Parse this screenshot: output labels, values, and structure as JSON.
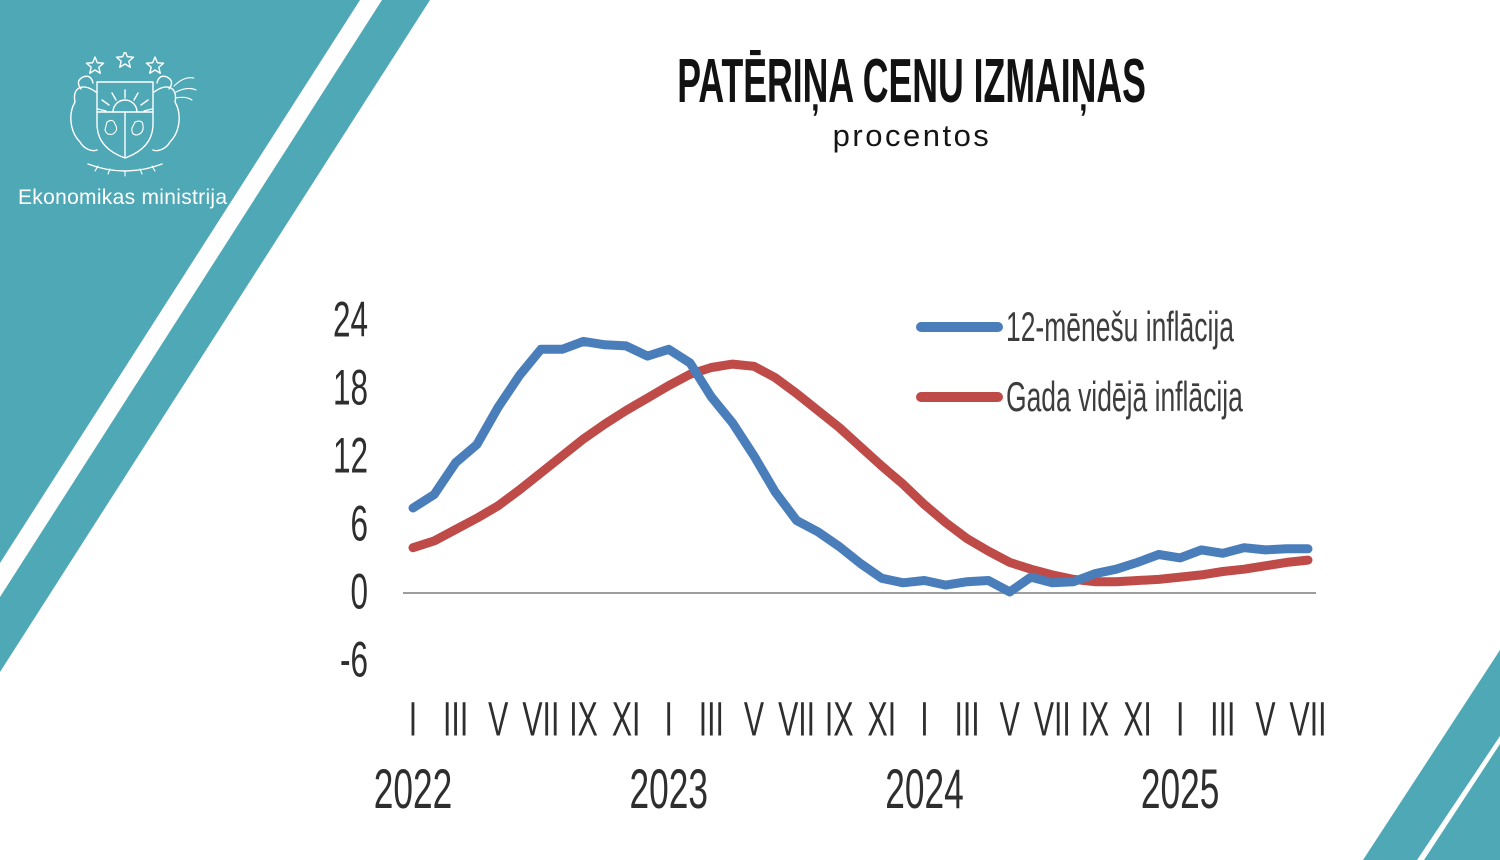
{
  "branding": {
    "ministry_name": "Ekonomikas ministrija",
    "emblem": "latvian-coat-of-arms",
    "teal": "#4FA8B5",
    "emblem_stroke": "#FFFFFF"
  },
  "header": {
    "title": "PATĒRIŅA CENU IZMAIŅAS",
    "subtitle": "procentos"
  },
  "chart_data": {
    "type": "line",
    "title": "PATĒRIŅA CENU IZMAIŅAS",
    "subtitle": "procentos",
    "unit": "percent",
    "ylim": [
      -6,
      24
    ],
    "y_ticks": [
      24,
      18,
      12,
      6,
      0,
      -6
    ],
    "grid": "off",
    "zero_line": true,
    "axis_color": "#9d9d9d",
    "tick_color": "#2e2e2e",
    "legend_position": "top-right-inside",
    "x_tick_groups": [
      {
        "year": "2022",
        "months": [
          "I",
          "III",
          "V",
          "VII",
          "IX",
          "XI"
        ]
      },
      {
        "year": "2023",
        "months": [
          "I",
          "III",
          "V",
          "VII",
          "IX",
          "XI"
        ]
      },
      {
        "year": "2024",
        "months": [
          "I",
          "III",
          "V",
          "VII",
          "IX",
          "XI"
        ]
      },
      {
        "year": "2025",
        "months": [
          "I",
          "III",
          "V",
          "VII"
        ]
      }
    ],
    "categories": [
      "2022-01",
      "2022-02",
      "2022-03",
      "2022-04",
      "2022-05",
      "2022-06",
      "2022-07",
      "2022-08",
      "2022-09",
      "2022-10",
      "2022-11",
      "2022-12",
      "2023-01",
      "2023-02",
      "2023-03",
      "2023-04",
      "2023-05",
      "2023-06",
      "2023-07",
      "2023-08",
      "2023-09",
      "2023-10",
      "2023-11",
      "2023-12",
      "2024-01",
      "2024-02",
      "2024-03",
      "2024-04",
      "2024-05",
      "2024-06",
      "2024-07",
      "2024-08",
      "2024-09",
      "2024-10",
      "2024-11",
      "2024-12",
      "2025-01",
      "2025-02",
      "2025-03",
      "2025-04",
      "2025-05",
      "2025-06",
      "2025-07"
    ],
    "series": [
      {
        "name": "12-mēnešu inflācija",
        "color": "#4A7EBB",
        "values": [
          7.5,
          8.7,
          11.5,
          13.1,
          16.4,
          19.2,
          21.5,
          21.5,
          22.2,
          21.9,
          21.8,
          20.9,
          21.5,
          20.3,
          17.3,
          15.0,
          12.1,
          8.9,
          6.4,
          5.4,
          4.1,
          2.6,
          1.3,
          0.9,
          1.1,
          0.7,
          1.0,
          1.1,
          0.1,
          1.4,
          0.9,
          1.0,
          1.7,
          2.1,
          2.7,
          3.4,
          3.1,
          3.8,
          3.5,
          4.0,
          3.8,
          3.9,
          3.9
        ]
      },
      {
        "name": "Gada vidējā inflācija",
        "color": "#BE4B48",
        "values": [
          4.0,
          4.6,
          5.6,
          6.6,
          7.7,
          9.1,
          10.6,
          12.1,
          13.6,
          14.9,
          16.1,
          17.2,
          18.3,
          19.3,
          19.9,
          20.2,
          20.0,
          19.0,
          17.6,
          16.1,
          14.6,
          12.9,
          11.2,
          9.6,
          7.8,
          6.2,
          4.8,
          3.7,
          2.7,
          2.1,
          1.6,
          1.2,
          1.0,
          1.0,
          1.1,
          1.2,
          1.4,
          1.6,
          1.9,
          2.1,
          2.4,
          2.7,
          2.9
        ]
      }
    ]
  }
}
